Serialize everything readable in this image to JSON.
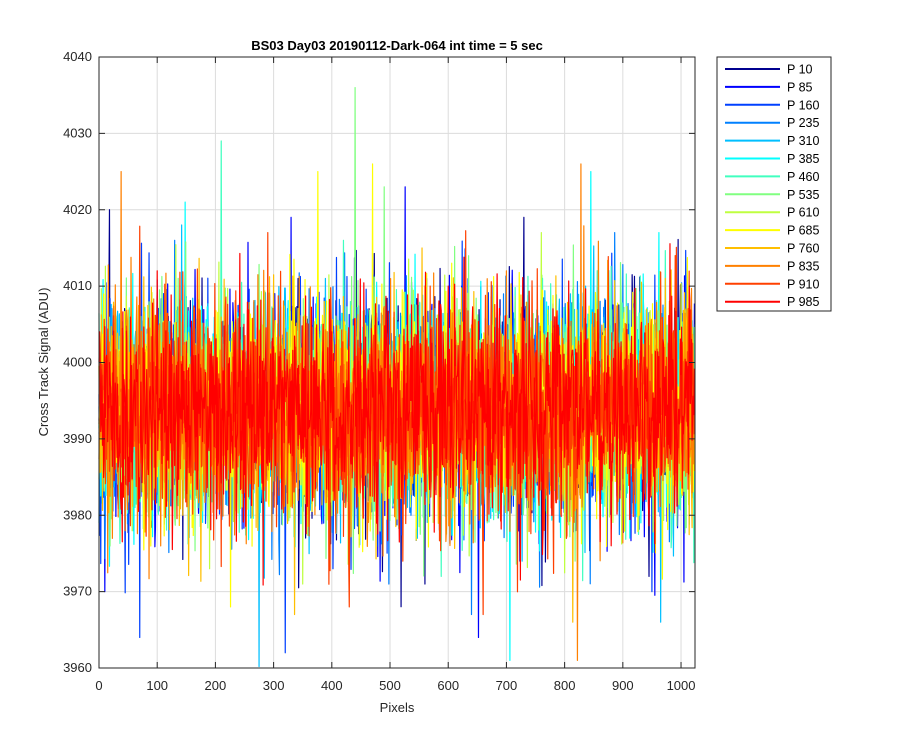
{
  "chart_data": {
    "type": "line",
    "title": "BS03 Day03 20190112-Dark-064 int time = 5 sec",
    "xlabel": "Pixels",
    "ylabel": "Cross Track Signal (ADU)",
    "xlim": [
      0,
      1024
    ],
    "ylim": [
      3960,
      4040
    ],
    "xticks": [
      0,
      100,
      200,
      300,
      400,
      500,
      600,
      700,
      800,
      900,
      1000
    ],
    "yticks": [
      3960,
      3970,
      3980,
      3990,
      4000,
      4010,
      4020,
      4030,
      4040
    ],
    "grid": true,
    "legend_position": "outside-right-top",
    "series_baseline": 3994,
    "series_noise_sd": 7,
    "series": [
      {
        "name": "P 10",
        "color": "#00008f",
        "spikes": [
          [
            18,
            4020
          ],
          [
            560,
            3971
          ],
          [
            730,
            4019
          ],
          [
            945,
            3972
          ]
        ]
      },
      {
        "name": "P 85",
        "color": "#0000ff",
        "spikes": [
          [
            10,
            3970
          ],
          [
            526,
            4023
          ],
          [
            652,
            3964
          ],
          [
            330,
            4019
          ]
        ]
      },
      {
        "name": "P 160",
        "color": "#0040ff",
        "spikes": [
          [
            70,
            3964
          ],
          [
            320,
            3962
          ],
          [
            402,
            3973
          ],
          [
            950,
            3970
          ]
        ]
      },
      {
        "name": "P 235",
        "color": "#0080ff",
        "spikes": [
          [
            130,
            4016
          ],
          [
            640,
            3967
          ],
          [
            886,
            4017
          ],
          [
            498,
            3971
          ]
        ]
      },
      {
        "name": "P 310",
        "color": "#00bfff",
        "spikes": [
          [
            275,
            3960
          ],
          [
            965,
            3966
          ],
          [
            142,
            4018
          ]
        ]
      },
      {
        "name": "P 385",
        "color": "#00ffff",
        "spikes": [
          [
            148,
            4021
          ],
          [
            706,
            3961
          ],
          [
            845,
            4025
          ],
          [
            962,
            4017
          ]
        ]
      },
      {
        "name": "P 460",
        "color": "#40ffbf",
        "spikes": [
          [
            210,
            4029
          ],
          [
            588,
            3972
          ],
          [
            420,
            4016
          ]
        ]
      },
      {
        "name": "P 535",
        "color": "#80ff80",
        "spikes": [
          [
            440,
            4036
          ],
          [
            490,
            4023
          ],
          [
            818,
            3974
          ]
        ]
      },
      {
        "name": "P 610",
        "color": "#bfff40",
        "spikes": [
          [
            350,
            3971
          ],
          [
            760,
            4017
          ],
          [
            190,
            3973
          ]
        ]
      },
      {
        "name": "P 685",
        "color": "#ffff00",
        "spikes": [
          [
            226,
            3968
          ],
          [
            376,
            4025
          ],
          [
            470,
            4026
          ],
          [
            606,
            4013
          ]
        ]
      },
      {
        "name": "P 760",
        "color": "#ffbf00",
        "spikes": [
          [
            336,
            3967
          ],
          [
            814,
            3966
          ],
          [
            555,
            4015
          ]
        ]
      },
      {
        "name": "P 835",
        "color": "#ff8000",
        "spikes": [
          [
            38,
            4025
          ],
          [
            822,
            3961
          ],
          [
            828,
            4026
          ],
          [
            700,
            4012
          ]
        ]
      },
      {
        "name": "P 910",
        "color": "#ff4000",
        "spikes": [
          [
            430,
            3968
          ],
          [
            660,
            3967
          ],
          [
            290,
            4017
          ],
          [
            990,
            4014
          ]
        ]
      },
      {
        "name": "P 985",
        "color": "#ff0000",
        "spikes": [
          [
            100,
            4012
          ],
          [
            600,
            4010
          ],
          [
            880,
            3976
          ]
        ]
      }
    ]
  }
}
